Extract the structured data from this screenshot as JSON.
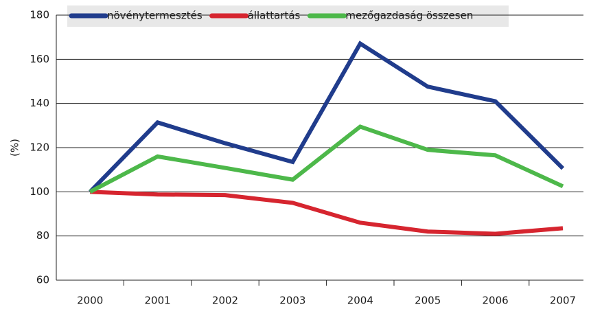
{
  "chart_data": {
    "type": "line",
    "ylabel": "(%)",
    "categories": [
      "2000",
      "2001",
      "2002",
      "2003",
      "2004",
      "2005",
      "2006",
      "2007"
    ],
    "series": [
      {
        "name": "növénytermesztés",
        "color": "#203c8c",
        "values": [
          100,
          131.4,
          122,
          113.5,
          167.1,
          147.6,
          141,
          110.6
        ]
      },
      {
        "name": "állattartás",
        "color": "#d6252f",
        "values": [
          100,
          98.8,
          98.5,
          95,
          86,
          82,
          81,
          83.5
        ]
      },
      {
        "name": "mezőgazdaság összesen",
        "color": "#4db84a",
        "values": [
          100,
          116,
          110.8,
          105.5,
          129.5,
          119,
          116.5,
          102.5
        ]
      }
    ],
    "ylim": [
      60,
      180
    ],
    "yticks": [
      60,
      80,
      100,
      120,
      140,
      160,
      180
    ],
    "grid": true,
    "legend": "top"
  }
}
